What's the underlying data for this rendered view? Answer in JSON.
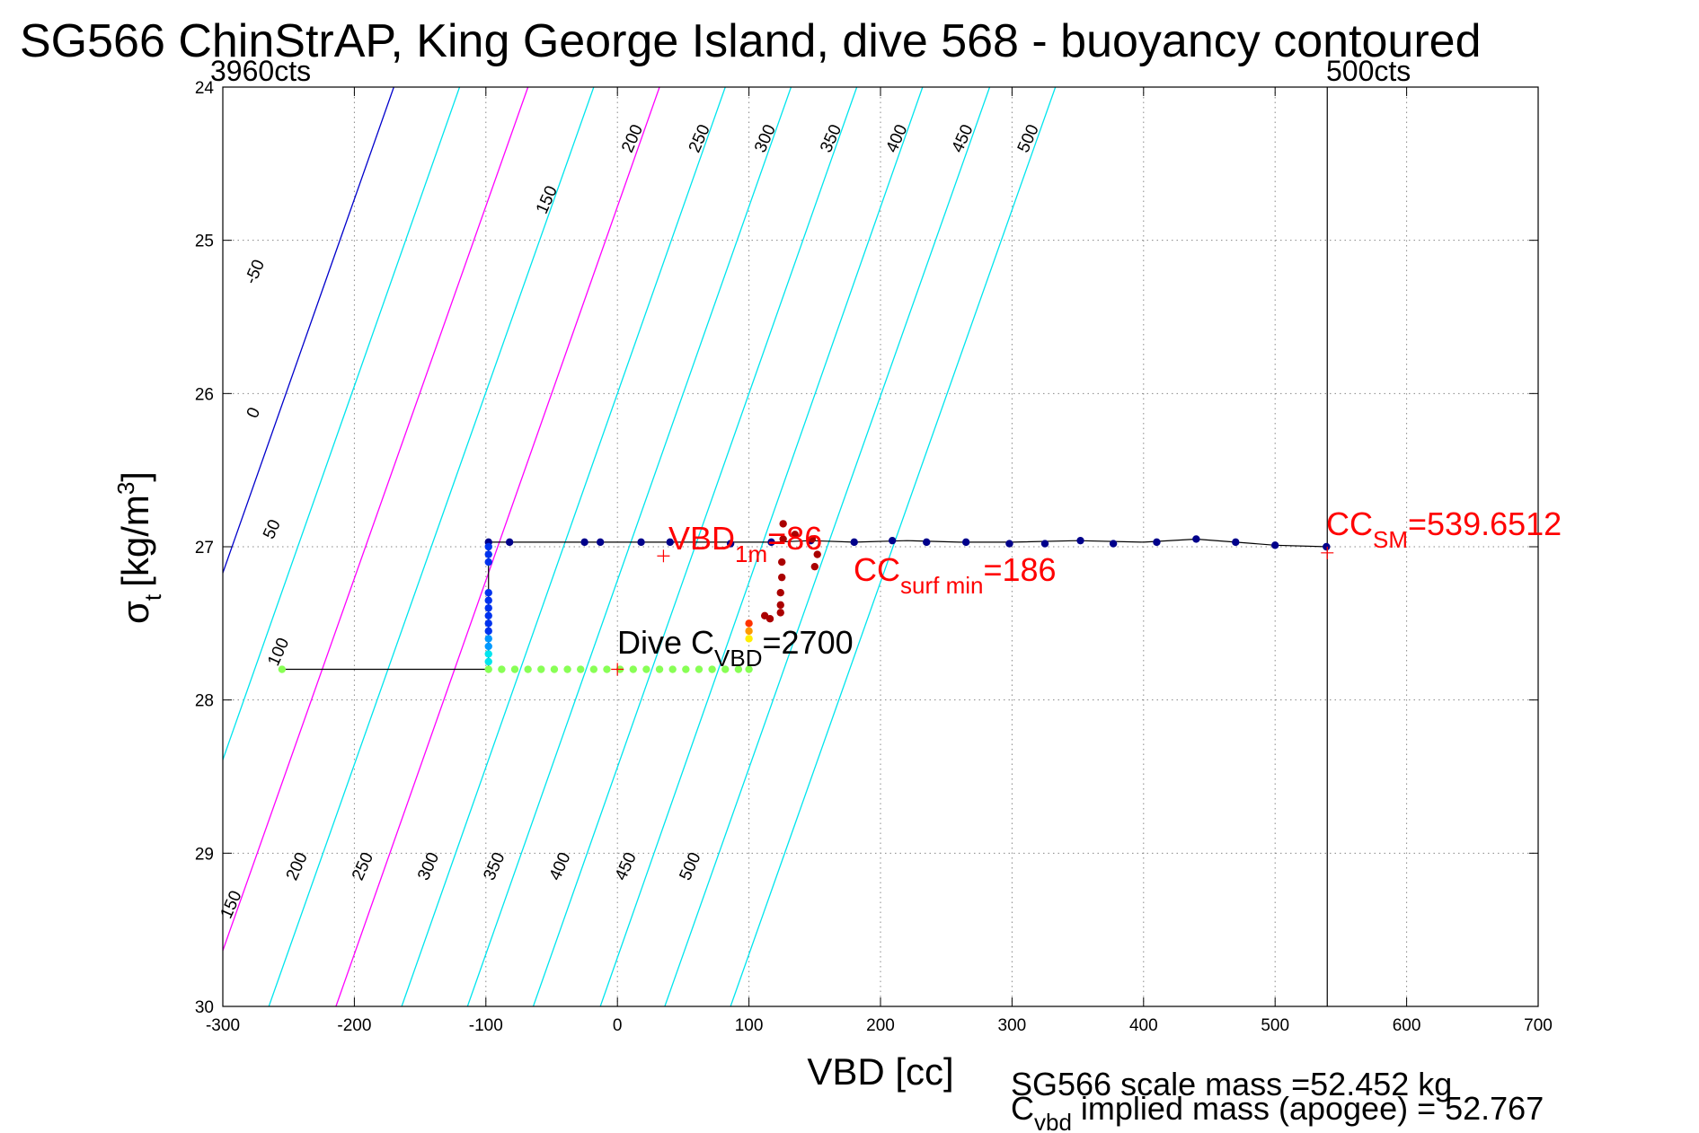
{
  "colors": {
    "contour_default": "#00e5ee",
    "contour_magenta": "#ff00ff",
    "contour_zero": "#0000cc",
    "trajectory": "#000000",
    "annotation_red": "#ff0000",
    "marker_navy": "#00008b",
    "marker_green": "#88ff55",
    "marker_darkred": "#aa0000"
  },
  "chart_data": {
    "type": "scatter",
    "title": "SG566 ChinStrAP, King George Island, dive 568 - buoyancy contoured",
    "xlabel": "VBD [cc]",
    "ylabel_main": "σ",
    "ylabel_sub": "t",
    "ylabel_units": "[kg/m",
    "ylabel_sup": "3",
    "ylabel_close": "]",
    "xlim": [
      -300,
      700
    ],
    "ylim": [
      24,
      30
    ],
    "y_reversed": true,
    "grid": true,
    "xticks": [
      "-300",
      "-200",
      "-100",
      "0",
      "100",
      "200",
      "300",
      "400",
      "500",
      "600",
      "700"
    ],
    "xtick_values": [
      -300,
      -200,
      -100,
      0,
      100,
      200,
      300,
      400,
      500,
      600,
      700
    ],
    "yticks": [
      "24",
      "25",
      "26",
      "27",
      "28",
      "29",
      "30"
    ],
    "ytick_values": [
      24,
      25,
      26,
      27,
      28,
      29,
      30
    ],
    "contours": [
      {
        "level": -50,
        "color": "#00e5ee",
        "x_at_sigma24": -300,
        "x_at_sigma30": -547
      },
      {
        "level": 0,
        "color": "#0000cc",
        "x_at_sigma24": -170,
        "x_at_sigma30": -416
      },
      {
        "level": 50,
        "color": "#00e5ee",
        "x_at_sigma24": -120,
        "x_at_sigma30": -366
      },
      {
        "level": 100,
        "color": "#ff00ff",
        "x_at_sigma24": -68,
        "x_at_sigma30": -315
      },
      {
        "level": 150,
        "color": "#00e5ee",
        "x_at_sigma24": -18,
        "x_at_sigma30": -265
      },
      {
        "level": 200,
        "color": "#ff00ff",
        "x_at_sigma24": 32,
        "x_at_sigma30": -214
      },
      {
        "level": 250,
        "color": "#00e5ee",
        "x_at_sigma24": 82,
        "x_at_sigma30": -164
      },
      {
        "level": 300,
        "color": "#00e5ee",
        "x_at_sigma24": 132,
        "x_at_sigma30": -114
      },
      {
        "level": 350,
        "color": "#00e5ee",
        "x_at_sigma24": 182,
        "x_at_sigma30": -64
      },
      {
        "level": 400,
        "color": "#00e5ee",
        "x_at_sigma24": 232,
        "x_at_sigma30": -13
      },
      {
        "level": 450,
        "color": "#00e5ee",
        "x_at_sigma24": 283,
        "x_at_sigma30": 36
      },
      {
        "level": 500,
        "color": "#00e5ee",
        "x_at_sigma24": 333,
        "x_at_sigma30": 86
      }
    ],
    "contour_labels_top": [
      {
        "text": "-50",
        "x": -272,
        "y": 25.22
      },
      {
        "text": "0",
        "x": -273,
        "y": 26.14
      },
      {
        "text": "50",
        "x": -259,
        "y": 26.9
      },
      {
        "text": "100",
        "x": -254,
        "y": 27.7
      },
      {
        "text": "150",
        "x": -50,
        "y": 24.75
      },
      {
        "text": "200",
        "x": 15,
        "y": 24.35
      },
      {
        "text": "250",
        "x": 66,
        "y": 24.35
      },
      {
        "text": "300",
        "x": 116,
        "y": 24.35
      },
      {
        "text": "350",
        "x": 166,
        "y": 24.35
      },
      {
        "text": "400",
        "x": 216,
        "y": 24.35
      },
      {
        "text": "450",
        "x": 266,
        "y": 24.35
      },
      {
        "text": "500",
        "x": 316,
        "y": 24.35
      }
    ],
    "contour_labels_bottom": [
      {
        "text": "150",
        "x": -290,
        "y": 29.35
      },
      {
        "text": "200",
        "x": -240,
        "y": 29.1
      },
      {
        "text": "250",
        "x": -190,
        "y": 29.1
      },
      {
        "text": "300",
        "x": -140,
        "y": 29.1
      },
      {
        "text": "350",
        "x": -90,
        "y": 29.1
      },
      {
        "text": "400",
        "x": -40,
        "y": 29.1
      },
      {
        "text": "450",
        "x": 10,
        "y": 29.1
      },
      {
        "text": "500",
        "x": 59,
        "y": 29.1
      }
    ],
    "vertical_line_x": 539.65,
    "trajectory_path": [
      [
        -255,
        27.8
      ],
      [
        -98,
        27.8
      ],
      [
        -98,
        26.97
      ],
      [
        -80,
        26.97
      ],
      [
        -20,
        26.97
      ],
      [
        20,
        26.97
      ],
      [
        60,
        26.97
      ],
      [
        100,
        26.97
      ],
      [
        120,
        26.97
      ],
      [
        147,
        26.96
      ],
      [
        180,
        26.97
      ],
      [
        220,
        26.96
      ],
      [
        260,
        26.97
      ],
      [
        300,
        26.97
      ],
      [
        350,
        26.96
      ],
      [
        400,
        26.97
      ],
      [
        440,
        26.95
      ],
      [
        470,
        26.97
      ],
      [
        500,
        26.99
      ],
      [
        540,
        27.0
      ]
    ],
    "series": [
      {
        "name": "surface",
        "color": "#00008b",
        "x": [
          -98,
          -82,
          -25,
          -13,
          18,
          40,
          86,
          117,
          147,
          180,
          209,
          235,
          265,
          298,
          325,
          352,
          377,
          410,
          440,
          470,
          500,
          539
        ],
        "y": [
          26.97,
          26.97,
          26.97,
          26.97,
          26.97,
          26.97,
          26.98,
          26.97,
          26.96,
          26.97,
          26.96,
          26.97,
          26.97,
          26.98,
          26.98,
          26.96,
          26.98,
          26.97,
          26.95,
          26.97,
          26.99,
          27.0
        ]
      },
      {
        "name": "descent-column",
        "color": "#0044ff",
        "x": [
          -98,
          -98,
          -98,
          -98,
          -98,
          -98,
          -98,
          -98,
          -98,
          -98,
          -98,
          -98,
          -98
        ],
        "y": [
          27.0,
          27.05,
          27.1,
          27.3,
          27.35,
          27.4,
          27.45,
          27.5,
          27.55,
          27.6,
          27.65,
          27.7,
          27.75
        ]
      },
      {
        "name": "bottom",
        "color": "#88ff55",
        "x": [
          -255,
          -98,
          -88,
          -78,
          -68,
          -58,
          -48,
          -38,
          -28,
          -18,
          -8,
          2,
          12,
          22,
          32,
          42,
          52,
          62,
          72,
          82,
          92,
          100
        ],
        "y": [
          27.8,
          27.8,
          27.8,
          27.8,
          27.8,
          27.8,
          27.8,
          27.8,
          27.8,
          27.8,
          27.8,
          27.8,
          27.8,
          27.8,
          27.8,
          27.8,
          27.8,
          27.8,
          27.8,
          27.8,
          27.8,
          27.8
        ]
      },
      {
        "name": "ascent",
        "color": "#aa0000",
        "x": [
          100,
          100,
          100,
          112,
          116,
          124,
          124,
          124,
          125,
          125,
          126,
          126,
          135,
          148,
          152,
          150
        ],
        "y": [
          27.5,
          27.55,
          27.6,
          27.45,
          27.47,
          27.43,
          27.38,
          27.3,
          27.2,
          27.1,
          26.95,
          26.85,
          26.92,
          26.95,
          27.05,
          27.13
        ]
      }
    ],
    "markers_plus": [
      {
        "x": 35,
        "y": 27.06
      },
      {
        "x": 539.65,
        "y": 27.04
      },
      {
        "x": 0,
        "y": 27.8
      }
    ],
    "cts_left": "3960cts",
    "cts_right": "500cts",
    "annotations": {
      "vbd1m_main": "VBD",
      "vbd1m_sub": "1m",
      "vbd1m_value": "=86",
      "ccsurf_main": "CC",
      "ccsurf_sub": "surf min",
      "ccsurf_value": "=186",
      "ccsm_main": "CC",
      "ccsm_sub": "SM",
      "ccsm_value": "=539.6512",
      "dive_main": "Dive C",
      "dive_sub": "VBD",
      "dive_value": "=2700"
    },
    "footer": {
      "line1": "SG566 scale mass =52.452 kg",
      "line2_main": "C",
      "line2_sub": "vbd",
      "line2_rest": " implied mass (apogee) = 52.767"
    }
  }
}
